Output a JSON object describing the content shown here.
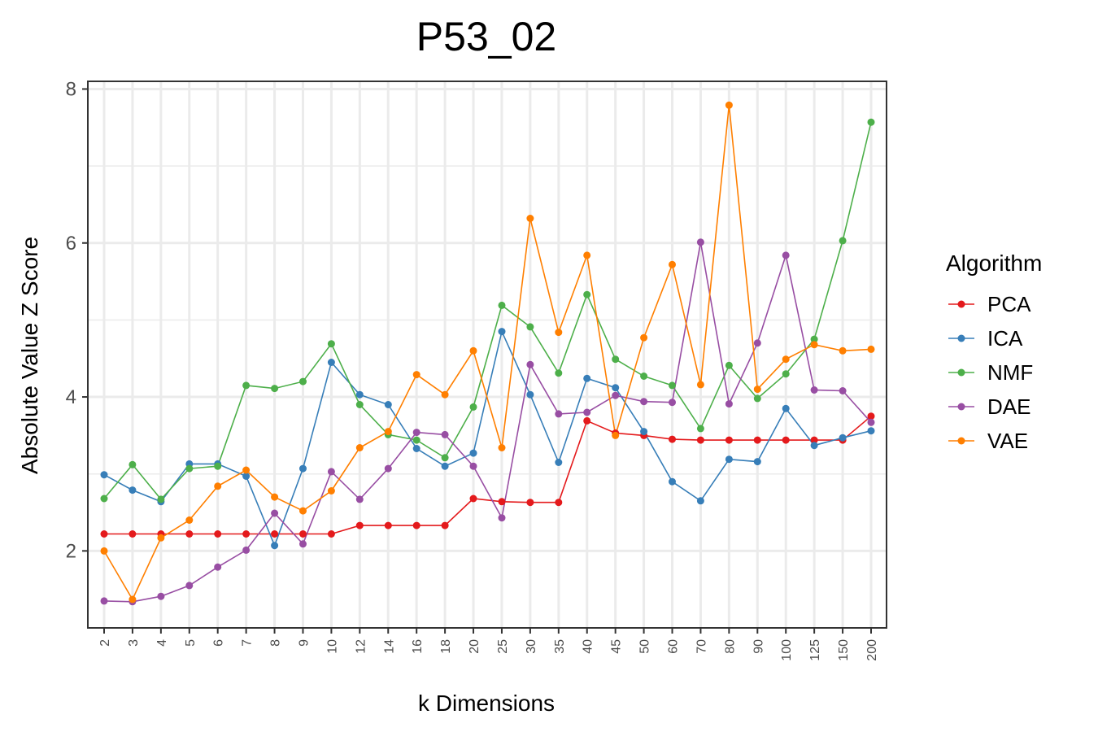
{
  "chart_data": {
    "type": "line",
    "title": "P53_02",
    "xlabel": "k Dimensions",
    "ylabel": "Absolute Value Z Score",
    "categories": [
      "2",
      "3",
      "4",
      "5",
      "6",
      "7",
      "8",
      "9",
      "10",
      "12",
      "14",
      "16",
      "18",
      "20",
      "25",
      "30",
      "35",
      "40",
      "45",
      "50",
      "60",
      "70",
      "80",
      "90",
      "100",
      "125",
      "150",
      "200"
    ],
    "ylim": [
      1.0,
      8.1
    ],
    "yticks": [
      2,
      4,
      6,
      8
    ],
    "grid": true,
    "legend_title": "Algorithm",
    "legend_position": "right",
    "series": [
      {
        "name": "PCA",
        "color": "#e41a1c",
        "values": [
          2.22,
          2.22,
          2.22,
          2.22,
          2.22,
          2.22,
          2.22,
          2.22,
          2.22,
          2.33,
          2.33,
          2.33,
          2.33,
          2.68,
          2.64,
          2.63,
          2.63,
          3.69,
          3.53,
          3.5,
          3.45,
          3.44,
          3.44,
          3.44,
          3.44,
          3.44,
          3.44,
          3.75
        ]
      },
      {
        "name": "ICA",
        "color": "#377eb8",
        "values": [
          2.99,
          2.79,
          2.64,
          3.13,
          3.13,
          2.97,
          2.07,
          3.07,
          4.45,
          4.03,
          3.9,
          3.33,
          3.1,
          3.27,
          4.85,
          4.03,
          3.15,
          4.24,
          4.12,
          3.55,
          2.9,
          2.65,
          3.19,
          3.16,
          3.85,
          3.37,
          3.47,
          3.56
        ]
      },
      {
        "name": "NMF",
        "color": "#4daf4a",
        "values": [
          2.68,
          3.12,
          2.67,
          3.07,
          3.1,
          4.15,
          4.11,
          4.2,
          4.69,
          3.9,
          3.51,
          3.44,
          3.21,
          3.87,
          5.19,
          4.91,
          4.31,
          5.33,
          4.49,
          4.27,
          4.15,
          3.59,
          4.41,
          3.98,
          4.3,
          4.75,
          6.03,
          7.57
        ]
      },
      {
        "name": "DAE",
        "color": "#984ea3",
        "values": [
          1.35,
          1.34,
          1.41,
          1.55,
          1.79,
          2.01,
          2.49,
          2.09,
          3.03,
          2.67,
          3.07,
          3.54,
          3.51,
          3.1,
          2.43,
          4.42,
          3.78,
          3.8,
          4.02,
          3.94,
          3.93,
          6.01,
          3.91,
          4.7,
          5.84,
          4.09,
          4.08,
          3.67
        ]
      },
      {
        "name": "VAE",
        "color": "#ff7f00",
        "values": [
          2.0,
          1.37,
          2.17,
          2.4,
          2.84,
          3.05,
          2.7,
          2.52,
          2.78,
          3.34,
          3.55,
          4.29,
          4.03,
          4.6,
          3.34,
          6.32,
          4.84,
          5.84,
          3.5,
          4.77,
          5.72,
          4.16,
          7.79,
          4.1,
          4.49,
          4.68,
          4.6,
          4.62
        ]
      }
    ]
  }
}
